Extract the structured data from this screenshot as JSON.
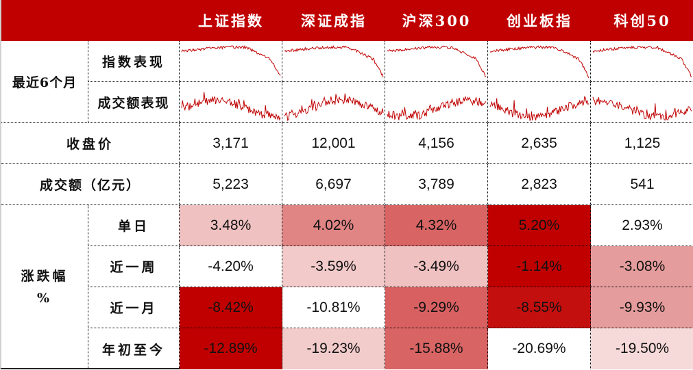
{
  "columns": [
    "上证指数",
    "深证成指",
    "沪深300",
    "创业板指",
    "科创50"
  ],
  "sections": {
    "recent6m": {
      "label": "最近6个月",
      "rows": [
        {
          "label": "指数表现",
          "sparkline_type": "index"
        },
        {
          "label": "成交额表现",
          "sparkline_type": "volume"
        }
      ]
    },
    "close": {
      "label": "收盘价",
      "values": [
        "3,171",
        "12,001",
        "4,156",
        "2,635",
        "1,125"
      ]
    },
    "turnover": {
      "label": "成交额（亿元）",
      "values": [
        "5,223",
        "6,697",
        "3,789",
        "2,823",
        "541"
      ]
    },
    "change": {
      "label_line1": "涨跌幅",
      "label_line2": "%",
      "rows": [
        {
          "label": "单日",
          "values": [
            "3.48%",
            "4.02%",
            "4.32%",
            "5.20%",
            "2.93%"
          ],
          "colors": [
            "#efc1c1",
            "#e08484",
            "#d86464",
            "#c00000",
            "#ffffff"
          ]
        },
        {
          "label": "近一周",
          "values": [
            "-4.20%",
            "-3.59%",
            "-3.49%",
            "-1.14%",
            "-3.08%"
          ],
          "colors": [
            "#ffffff",
            "#f2caca",
            "#efc1c1",
            "#c00000",
            "#e59c9c"
          ]
        },
        {
          "label": "近一月",
          "values": [
            "-8.42%",
            "-10.81%",
            "-9.29%",
            "-8.55%",
            "-9.93%"
          ],
          "colors": [
            "#c00000",
            "#ffffff",
            "#d86060",
            "#c40f0f",
            "#e59c9c"
          ]
        },
        {
          "label": "年初至今",
          "values": [
            "-12.89%",
            "-19.23%",
            "-15.88%",
            "-20.69%",
            "-19.50%"
          ],
          "colors": [
            "#c00000",
            "#f2cbcb",
            "#d86464",
            "#ffffff",
            "#f6d9d9"
          ]
        }
      ]
    }
  },
  "colors": {
    "header_bg": "#c00000",
    "header_text": "#ffffff",
    "sparkline": "#c00000"
  }
}
